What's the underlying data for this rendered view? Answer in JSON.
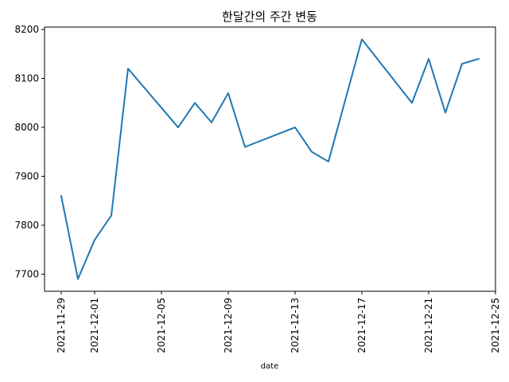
{
  "chart_data": {
    "type": "line",
    "title": "한달간의 주간 변동",
    "xlabel": "date",
    "ylabel": "",
    "x_ticks": [
      "2021-11-29",
      "2021-12-01",
      "2021-12-05",
      "2021-12-09",
      "2021-12-13",
      "2021-12-17",
      "2021-12-21",
      "2021-12-25"
    ],
    "y_ticks": [
      7700,
      7800,
      7900,
      8000,
      8100,
      8200
    ],
    "xlim": [
      "2021-11-28",
      "2021-12-25"
    ],
    "ylim": [
      7665,
      8205
    ],
    "grid": false,
    "legend": "none",
    "series": [
      {
        "color": "#1f77b4",
        "x": [
          "2021-11-29",
          "2021-11-30",
          "2021-12-01",
          "2021-12-02",
          "2021-12-03",
          "2021-12-06",
          "2021-12-07",
          "2021-12-08",
          "2021-12-09",
          "2021-12-10",
          "2021-12-13",
          "2021-12-14",
          "2021-12-15",
          "2021-12-17",
          "2021-12-20",
          "2021-12-21",
          "2021-12-22",
          "2021-12-23",
          "2021-12-24"
        ],
        "y": [
          7860,
          7690,
          7770,
          7820,
          8120,
          8000,
          8050,
          8010,
          8070,
          7960,
          8000,
          7950,
          7930,
          8180,
          8050,
          8140,
          8030,
          8130,
          8140
        ]
      }
    ]
  }
}
